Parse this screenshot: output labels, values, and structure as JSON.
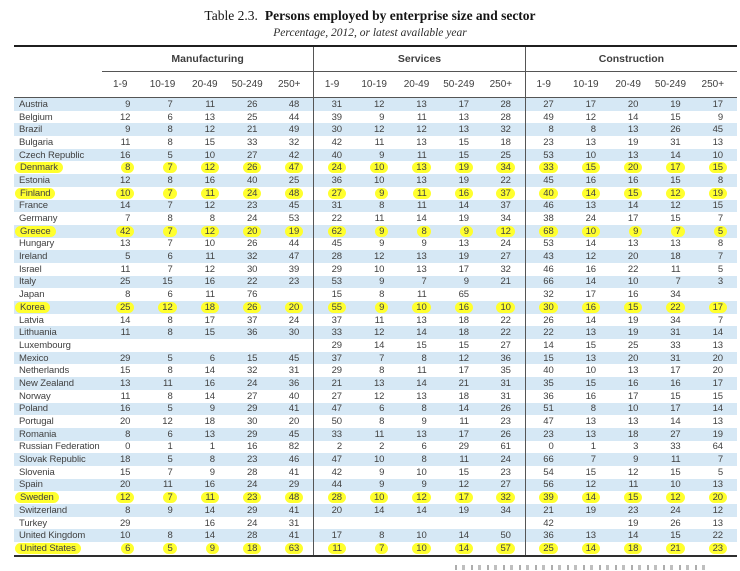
{
  "title": {
    "prefix": "Table 2.3.",
    "main": "Persons employed by enterprise size and sector",
    "subtitle": "Percentage, 2012, or latest available year"
  },
  "table": {
    "sections": [
      "Manufacturing",
      "Services",
      "Construction"
    ],
    "size_classes": [
      "1-9",
      "10-19",
      "20-49",
      "50-249",
      "250+"
    ],
    "stripe_color": "#d6e8f5",
    "highlight_color": "#ffff2e",
    "rows": [
      {
        "country": "Austria",
        "highlighted": false,
        "manufacturing": [
          "9",
          "7",
          "11",
          "26",
          "48"
        ],
        "services": [
          "31",
          "12",
          "13",
          "17",
          "28"
        ],
        "construction": [
          "27",
          "17",
          "20",
          "19",
          "17"
        ]
      },
      {
        "country": "Belgium",
        "highlighted": false,
        "manufacturing": [
          "12",
          "6",
          "13",
          "25",
          "44"
        ],
        "services": [
          "39",
          "9",
          "11",
          "13",
          "28"
        ],
        "construction": [
          "49",
          "12",
          "14",
          "15",
          "9"
        ]
      },
      {
        "country": "Brazil",
        "highlighted": false,
        "manufacturing": [
          "9",
          "8",
          "12",
          "21",
          "49"
        ],
        "services": [
          "30",
          "12",
          "12",
          "13",
          "32"
        ],
        "construction": [
          "8",
          "8",
          "13",
          "26",
          "45"
        ]
      },
      {
        "country": "Bulgaria",
        "highlighted": false,
        "manufacturing": [
          "11",
          "8",
          "15",
          "33",
          "32"
        ],
        "services": [
          "42",
          "11",
          "13",
          "15",
          "18"
        ],
        "construction": [
          "23",
          "13",
          "19",
          "31",
          "13"
        ]
      },
      {
        "country": "Czech Republic",
        "highlighted": false,
        "manufacturing": [
          "16",
          "5",
          "10",
          "27",
          "42"
        ],
        "services": [
          "40",
          "9",
          "11",
          "15",
          "25"
        ],
        "construction": [
          "53",
          "10",
          "13",
          "14",
          "10"
        ]
      },
      {
        "country": "Denmark",
        "highlighted": true,
        "manufacturing": [
          "8",
          "7",
          "12",
          "26",
          "47"
        ],
        "services": [
          "24",
          "10",
          "13",
          "19",
          "34"
        ],
        "construction": [
          "33",
          "15",
          "20",
          "17",
          "15"
        ]
      },
      {
        "country": "Estonia",
        "highlighted": false,
        "manufacturing": [
          "12",
          "8",
          "16",
          "40",
          "25"
        ],
        "services": [
          "36",
          "10",
          "13",
          "19",
          "22"
        ],
        "construction": [
          "45",
          "16",
          "16",
          "15",
          "8"
        ]
      },
      {
        "country": "Finland",
        "highlighted": true,
        "manufacturing": [
          "10",
          "7",
          "11",
          "24",
          "48"
        ],
        "services": [
          "27",
          "9",
          "11",
          "16",
          "37"
        ],
        "construction": [
          "40",
          "14",
          "15",
          "12",
          "19"
        ]
      },
      {
        "country": "France",
        "highlighted": false,
        "manufacturing": [
          "14",
          "7",
          "12",
          "23",
          "45"
        ],
        "services": [
          "31",
          "8",
          "11",
          "14",
          "37"
        ],
        "construction": [
          "46",
          "13",
          "14",
          "12",
          "15"
        ]
      },
      {
        "country": "Germany",
        "highlighted": false,
        "manufacturing": [
          "7",
          "8",
          "8",
          "24",
          "53"
        ],
        "services": [
          "22",
          "11",
          "14",
          "19",
          "34"
        ],
        "construction": [
          "38",
          "24",
          "17",
          "15",
          "7"
        ]
      },
      {
        "country": "Greece",
        "highlighted": true,
        "manufacturing": [
          "42",
          "7",
          "12",
          "20",
          "19"
        ],
        "services": [
          "62",
          "9",
          "8",
          "9",
          "12"
        ],
        "construction": [
          "68",
          "10",
          "9",
          "7",
          "5"
        ]
      },
      {
        "country": "Hungary",
        "highlighted": false,
        "manufacturing": [
          "13",
          "7",
          "10",
          "26",
          "44"
        ],
        "services": [
          "45",
          "9",
          "9",
          "13",
          "24"
        ],
        "construction": [
          "53",
          "14",
          "13",
          "13",
          "8"
        ]
      },
      {
        "country": "Ireland",
        "highlighted": false,
        "manufacturing": [
          "5",
          "6",
          "11",
          "32",
          "47"
        ],
        "services": [
          "28",
          "12",
          "13",
          "19",
          "27"
        ],
        "construction": [
          "43",
          "12",
          "20",
          "18",
          "7"
        ]
      },
      {
        "country": "Israel",
        "highlighted": false,
        "manufacturing": [
          "11",
          "7",
          "12",
          "30",
          "39"
        ],
        "services": [
          "29",
          "10",
          "13",
          "17",
          "32"
        ],
        "construction": [
          "46",
          "16",
          "22",
          "11",
          "5"
        ]
      },
      {
        "country": "Italy",
        "highlighted": false,
        "manufacturing": [
          "25",
          "15",
          "16",
          "22",
          "23"
        ],
        "services": [
          "53",
          "9",
          "7",
          "9",
          "21"
        ],
        "construction": [
          "66",
          "14",
          "10",
          "7",
          "3"
        ]
      },
      {
        "country": "Japan",
        "highlighted": false,
        "manufacturing": [
          "8",
          "6",
          "11",
          "76",
          ""
        ],
        "services": [
          "15",
          "8",
          "11",
          "65",
          ""
        ],
        "construction": [
          "32",
          "17",
          "16",
          "34",
          ""
        ]
      },
      {
        "country": "Korea",
        "highlighted": true,
        "manufacturing": [
          "25",
          "12",
          "18",
          "26",
          "20"
        ],
        "services": [
          "55",
          "9",
          "10",
          "16",
          "10"
        ],
        "construction": [
          "30",
          "16",
          "15",
          "22",
          "17"
        ]
      },
      {
        "country": "Latvia",
        "highlighted": false,
        "manufacturing": [
          "14",
          "8",
          "17",
          "37",
          "24"
        ],
        "services": [
          "37",
          "11",
          "13",
          "18",
          "22"
        ],
        "construction": [
          "26",
          "14",
          "19",
          "34",
          "7"
        ]
      },
      {
        "country": "Lithuania",
        "highlighted": false,
        "manufacturing": [
          "11",
          "8",
          "15",
          "36",
          "30"
        ],
        "services": [
          "33",
          "12",
          "14",
          "18",
          "22"
        ],
        "construction": [
          "22",
          "13",
          "19",
          "31",
          "14"
        ]
      },
      {
        "country": "Luxembourg",
        "highlighted": false,
        "manufacturing": [
          "",
          "",
          "",
          "",
          ""
        ],
        "services": [
          "29",
          "14",
          "15",
          "15",
          "27"
        ],
        "construction": [
          "14",
          "15",
          "25",
          "33",
          "13"
        ]
      },
      {
        "country": "Mexico",
        "highlighted": false,
        "manufacturing": [
          "29",
          "5",
          "6",
          "15",
          "45"
        ],
        "services": [
          "37",
          "7",
          "8",
          "12",
          "36"
        ],
        "construction": [
          "15",
          "13",
          "20",
          "31",
          "20"
        ]
      },
      {
        "country": "Netherlands",
        "highlighted": false,
        "manufacturing": [
          "15",
          "8",
          "14",
          "32",
          "31"
        ],
        "services": [
          "29",
          "8",
          "11",
          "17",
          "35"
        ],
        "construction": [
          "40",
          "10",
          "13",
          "17",
          "20"
        ]
      },
      {
        "country": "New Zealand",
        "highlighted": false,
        "manufacturing": [
          "13",
          "11",
          "16",
          "24",
          "36"
        ],
        "services": [
          "21",
          "13",
          "14",
          "21",
          "31"
        ],
        "construction": [
          "35",
          "15",
          "16",
          "16",
          "17"
        ]
      },
      {
        "country": "Norway",
        "highlighted": false,
        "manufacturing": [
          "11",
          "8",
          "14",
          "27",
          "40"
        ],
        "services": [
          "27",
          "12",
          "13",
          "18",
          "31"
        ],
        "construction": [
          "36",
          "16",
          "17",
          "15",
          "15"
        ]
      },
      {
        "country": "Poland",
        "highlighted": false,
        "manufacturing": [
          "16",
          "5",
          "9",
          "29",
          "41"
        ],
        "services": [
          "47",
          "6",
          "8",
          "14",
          "26"
        ],
        "construction": [
          "51",
          "8",
          "10",
          "17",
          "14"
        ]
      },
      {
        "country": "Portugal",
        "highlighted": false,
        "manufacturing": [
          "20",
          "12",
          "18",
          "30",
          "20"
        ],
        "services": [
          "50",
          "8",
          "9",
          "11",
          "23"
        ],
        "construction": [
          "47",
          "13",
          "13",
          "14",
          "13"
        ]
      },
      {
        "country": "Romania",
        "highlighted": false,
        "manufacturing": [
          "8",
          "6",
          "13",
          "29",
          "45"
        ],
        "services": [
          "33",
          "11",
          "13",
          "17",
          "26"
        ],
        "construction": [
          "23",
          "13",
          "18",
          "27",
          "19"
        ]
      },
      {
        "country": "Russian Federation",
        "highlighted": false,
        "manufacturing": [
          "0",
          "1",
          "1",
          "16",
          "82"
        ],
        "services": [
          "2",
          "2",
          "6",
          "29",
          "61"
        ],
        "construction": [
          "0",
          "1",
          "3",
          "33",
          "64"
        ]
      },
      {
        "country": "Slovak Republic",
        "highlighted": false,
        "manufacturing": [
          "18",
          "5",
          "8",
          "23",
          "46"
        ],
        "services": [
          "47",
          "10",
          "8",
          "11",
          "24"
        ],
        "construction": [
          "66",
          "7",
          "9",
          "11",
          "7"
        ]
      },
      {
        "country": "Slovenia",
        "highlighted": false,
        "manufacturing": [
          "15",
          "7",
          "9",
          "28",
          "41"
        ],
        "services": [
          "42",
          "9",
          "10",
          "15",
          "23"
        ],
        "construction": [
          "54",
          "15",
          "12",
          "15",
          "5"
        ]
      },
      {
        "country": "Spain",
        "highlighted": false,
        "manufacturing": [
          "20",
          "11",
          "16",
          "24",
          "29"
        ],
        "services": [
          "44",
          "9",
          "9",
          "12",
          "27"
        ],
        "construction": [
          "56",
          "12",
          "11",
          "10",
          "13"
        ]
      },
      {
        "country": "Sweden",
        "highlighted": true,
        "manufacturing": [
          "12",
          "7",
          "11",
          "23",
          "48"
        ],
        "services": [
          "28",
          "10",
          "12",
          "17",
          "32"
        ],
        "construction": [
          "39",
          "14",
          "15",
          "12",
          "20"
        ]
      },
      {
        "country": "Switzerland",
        "highlighted": false,
        "manufacturing": [
          "8",
          "9",
          "14",
          "29",
          "41"
        ],
        "services": [
          "20",
          "14",
          "14",
          "19",
          "34"
        ],
        "construction": [
          "21",
          "19",
          "23",
          "24",
          "12"
        ]
      },
      {
        "country": "Turkey",
        "highlighted": false,
        "manufacturing": [
          "29",
          "",
          "16",
          "24",
          "31"
        ],
        "services": [
          "",
          "",
          "",
          "",
          ""
        ],
        "construction": [
          "42",
          "",
          "19",
          "26",
          "13"
        ]
      },
      {
        "country": "United Kingdom",
        "highlighted": false,
        "manufacturing": [
          "10",
          "8",
          "14",
          "28",
          "41"
        ],
        "services": [
          "17",
          "8",
          "10",
          "14",
          "50"
        ],
        "construction": [
          "36",
          "13",
          "14",
          "15",
          "22"
        ]
      },
      {
        "country": "United States",
        "highlighted": true,
        "manufacturing": [
          "6",
          "5",
          "9",
          "18",
          "63"
        ],
        "services": [
          "11",
          "7",
          "10",
          "14",
          "57"
        ],
        "construction": [
          "25",
          "14",
          "18",
          "21",
          "23"
        ]
      }
    ]
  }
}
